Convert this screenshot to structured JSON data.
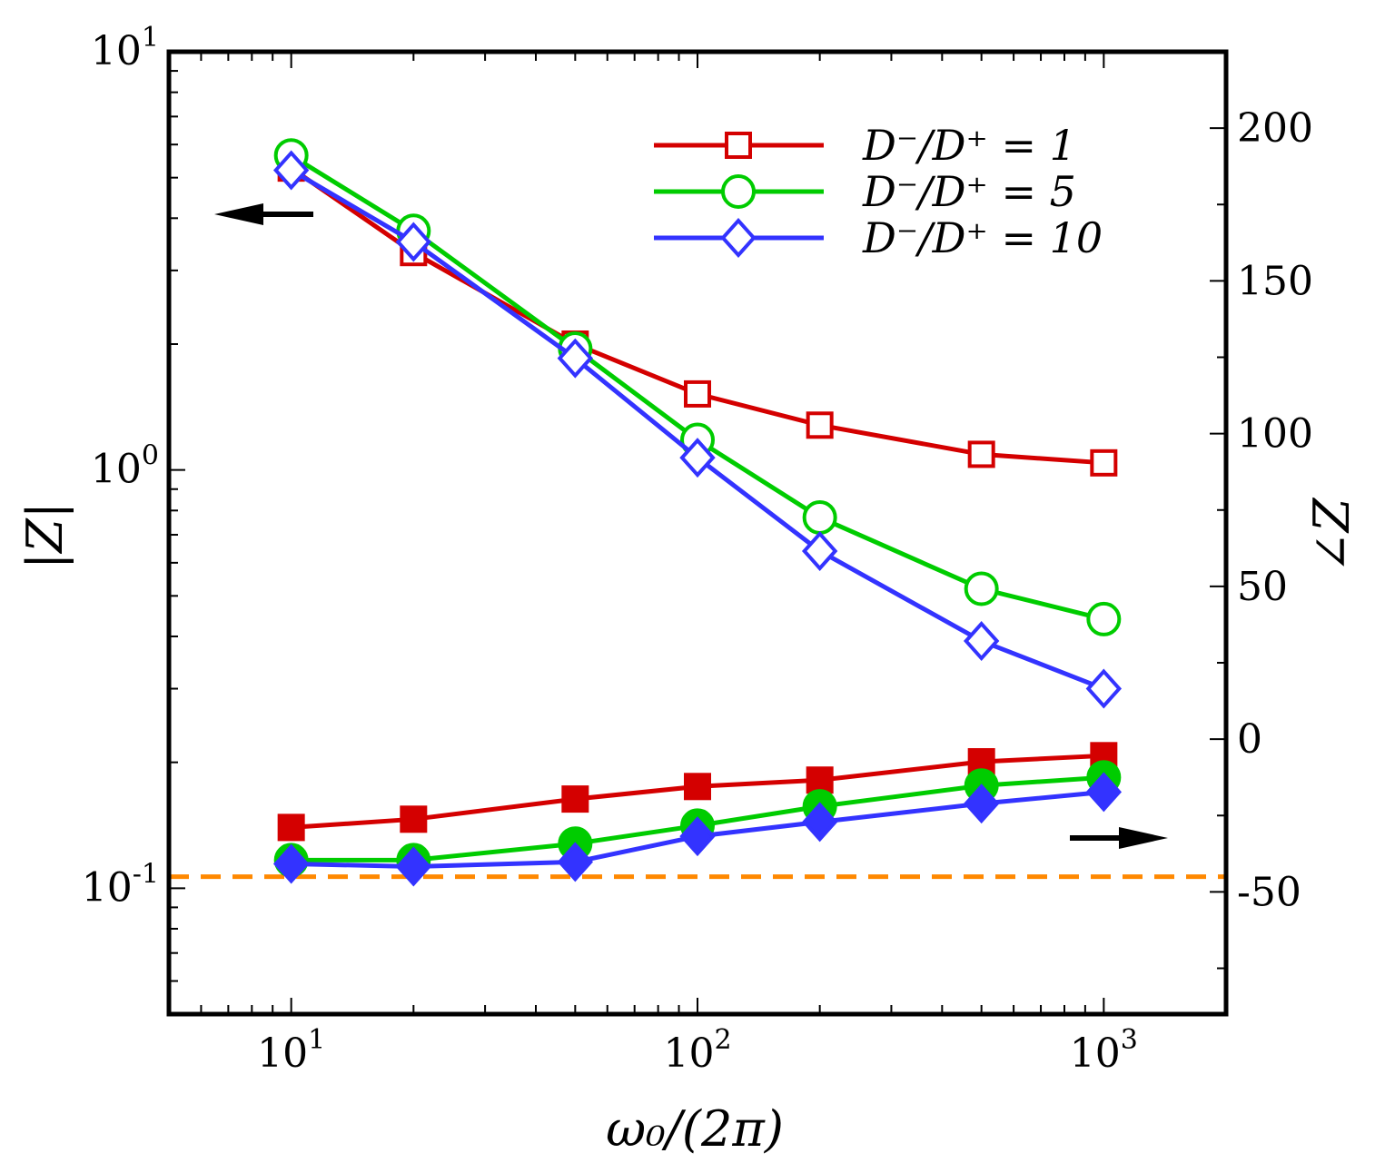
{
  "chart_data": {
    "type": "line",
    "title": "",
    "xlabel": "ω₀/(2π)",
    "ylabel_left": "|Z|",
    "ylabel_right": "∠Z",
    "xscale": "log",
    "yscale_left": "log",
    "yscale_right": "linear",
    "xlim": [
      5,
      2000
    ],
    "ylim_left": [
      0.05,
      10
    ],
    "ylim_right": [
      -90,
      225
    ],
    "x_ticks": [
      {
        "base": "10",
        "exp": "1",
        "value": 10
      },
      {
        "base": "10",
        "exp": "2",
        "value": 100
      },
      {
        "base": "10",
        "exp": "3",
        "value": 1000
      }
    ],
    "y_left_ticks": [
      {
        "base": "10",
        "exp": "1",
        "value": 10
      },
      {
        "base": "10",
        "exp": "0",
        "value": 1
      },
      {
        "base": "10",
        "exp": "-1",
        "value": 0.1
      }
    ],
    "y_right_ticks": [
      "200",
      "150",
      "100",
      "50",
      "0",
      "-50"
    ],
    "y_right_tick_values": [
      200,
      150,
      100,
      50,
      0,
      -50
    ],
    "grid": false,
    "legend_placement": "top-right",
    "x": [
      10,
      20,
      50,
      100,
      200,
      500,
      1000
    ],
    "series": [
      {
        "name": "D⁻/D⁺ = 1",
        "color": "#d40000",
        "marker": "square",
        "magnitude": [
          5.27,
          3.31,
          2.0,
          1.52,
          1.28,
          1.09,
          1.04
        ],
        "phase": [
          -28.9,
          -26.2,
          -19.6,
          -15.5,
          -13.4,
          -7.4,
          -5.4
        ]
      },
      {
        "name": "D⁻/D⁺ = 5",
        "color": "#00cc00",
        "marker": "circle",
        "magnitude": [
          5.65,
          3.73,
          1.95,
          1.18,
          0.77,
          0.52,
          0.44
        ],
        "phase": [
          -39.6,
          -39.6,
          -34.2,
          -28.3,
          -22.0,
          -15.2,
          -12.5
        ]
      },
      {
        "name": "D⁻/D⁺ = 10",
        "color": "#3333ff",
        "marker": "diamond",
        "magnitude": [
          5.21,
          3.51,
          1.85,
          1.07,
          0.64,
          0.39,
          0.3
        ],
        "phase": [
          -40.8,
          -41.7,
          -40.2,
          -31.8,
          -27.1,
          -21.1,
          -17.3
        ]
      }
    ],
    "reference_line": {
      "axis": "right",
      "value": -45,
      "color": "#ff8800",
      "style": "dashed"
    },
    "annotations": [
      {
        "type": "arrow",
        "direction": "left",
        "meaning": "magnitude curves use left axis"
      },
      {
        "type": "arrow",
        "direction": "right",
        "meaning": "phase curves use right axis"
      }
    ]
  }
}
